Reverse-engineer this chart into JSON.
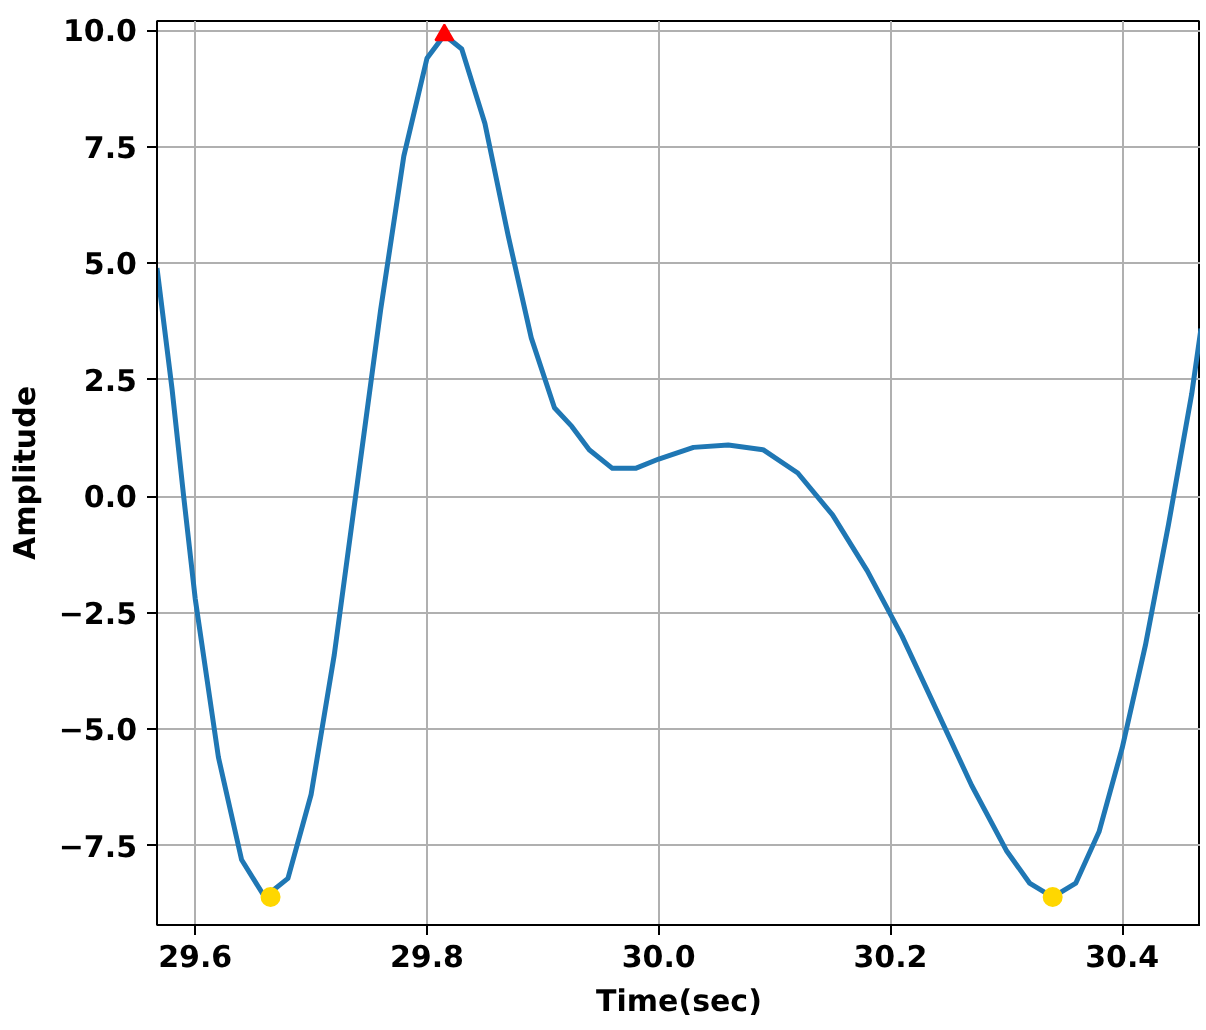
{
  "chart_data": {
    "type": "line",
    "xlabel": "Time(sec)",
    "ylabel": "Amplitude",
    "xlim": [
      29.567,
      30.468
    ],
    "ylim": [
      -9.2,
      10.2
    ],
    "xticks": [
      {
        "value": 29.6,
        "label": "29.6"
      },
      {
        "value": 29.8,
        "label": "29.8"
      },
      {
        "value": 30.0,
        "label": "30.0"
      },
      {
        "value": 30.2,
        "label": "30.2"
      },
      {
        "value": 30.4,
        "label": "30.4"
      }
    ],
    "yticks": [
      {
        "value": -7.5,
        "label": "−7.5"
      },
      {
        "value": -5,
        "label": "−5.0"
      },
      {
        "value": -2.5,
        "label": "−2.5"
      },
      {
        "value": 0,
        "label": "0.0"
      },
      {
        "value": 2.5,
        "label": "2.5"
      },
      {
        "value": 5,
        "label": "5.0"
      },
      {
        "value": 7.5,
        "label": "7.5"
      },
      {
        "value": 10,
        "label": "10.0"
      }
    ],
    "grid": true,
    "marker": "none",
    "line_style": "solid",
    "series": [
      {
        "color": "#1f77b4",
        "x": [
          29.567,
          29.58,
          29.59,
          29.6,
          29.62,
          29.64,
          29.66,
          29.68,
          29.7,
          29.72,
          29.74,
          29.76,
          29.78,
          29.8,
          29.815,
          29.83,
          29.85,
          29.87,
          29.89,
          29.91,
          29.925,
          29.94,
          29.96,
          29.98,
          30.0,
          30.03,
          30.06,
          30.09,
          30.12,
          30.15,
          30.18,
          30.21,
          30.24,
          30.27,
          30.3,
          30.32,
          30.34,
          30.36,
          30.38,
          30.4,
          30.42,
          30.44,
          30.46,
          30.468
        ],
        "values": [
          4.9,
          2.3,
          0.0,
          -2.2,
          -5.6,
          -7.8,
          -8.6,
          -8.2,
          -6.4,
          -3.4,
          0.3,
          4.0,
          7.3,
          9.4,
          9.9,
          9.6,
          8.0,
          5.6,
          3.4,
          1.9,
          1.5,
          1.0,
          0.6,
          0.6,
          0.8,
          1.05,
          1.1,
          1.0,
          0.5,
          -0.4,
          -1.6,
          -3.0,
          -4.6,
          -6.2,
          -7.6,
          -8.3,
          -8.6,
          -8.3,
          -7.2,
          -5.4,
          -3.2,
          -0.6,
          2.2,
          3.6
        ]
      },
      {
        "type": "scatter",
        "color": "#ff0000",
        "marker": "triangle",
        "x": [
          29.815
        ],
        "values": [
          9.9
        ]
      },
      {
        "type": "scatter",
        "color": "#ffd700",
        "marker": "circle",
        "x": [
          29.665,
          30.34
        ],
        "values": [
          -8.6,
          -8.6
        ]
      }
    ]
  }
}
